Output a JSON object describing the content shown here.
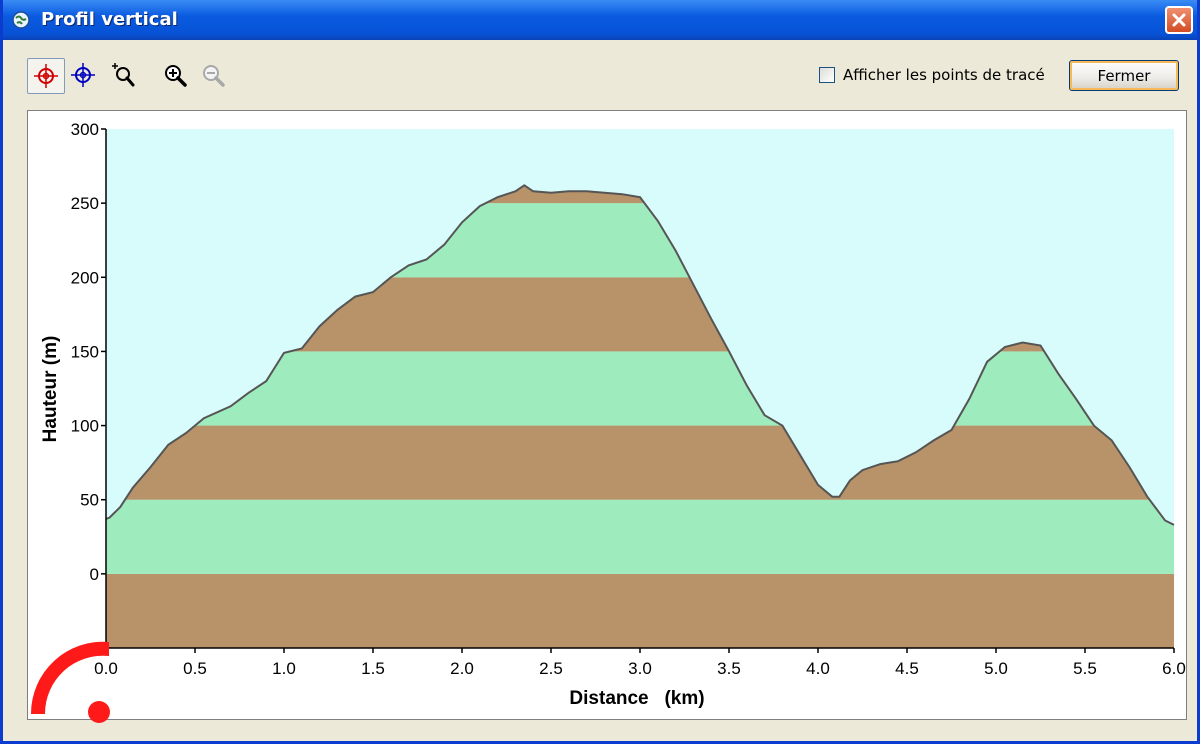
{
  "window": {
    "title": "Profil vertical",
    "title_icon": "globe-icon",
    "close_icon": "close-icon"
  },
  "toolbar": {
    "tools": [
      {
        "name": "red-crosshair-icon",
        "active": true
      },
      {
        "name": "blue-crosshair-icon",
        "active": false
      },
      {
        "name": "zoom-area-icon",
        "active": false
      },
      {
        "name": "zoom-in-icon",
        "active": false
      },
      {
        "name": "zoom-out-icon",
        "active": false,
        "disabled": true
      }
    ],
    "checkbox_label": "Afficher les points de tracé",
    "checkbox_checked": false,
    "close_label": "Fermer"
  },
  "chart_data": {
    "type": "area",
    "xlabel": "Distance   (km)",
    "ylabel": "Hauteur (m)",
    "xlim": [
      0,
      6
    ],
    "ylim": [
      -50,
      300
    ],
    "xticks": [
      "0.0",
      "0.5",
      "1.0",
      "1.5",
      "2.0",
      "2.5",
      "3.0",
      "3.5",
      "4.0",
      "4.5",
      "5.0",
      "5.5",
      "6.0"
    ],
    "yticks": [
      "0",
      "50",
      "100",
      "150",
      "200",
      "250",
      "300"
    ],
    "band_interval": 50,
    "band_colors": [
      "#b8936a",
      "#9eecbe"
    ],
    "sky_color": "#d8fcfc",
    "series": [
      {
        "x": [
          0.0,
          0.02,
          0.08,
          0.15,
          0.25,
          0.35,
          0.45,
          0.55,
          0.7,
          0.8,
          0.9,
          1.0,
          1.1,
          1.2,
          1.3,
          1.4,
          1.5,
          1.6,
          1.7,
          1.8,
          1.9,
          2.0,
          2.1,
          2.2,
          2.3,
          2.35,
          2.4,
          2.5,
          2.6,
          2.7,
          2.8,
          2.9,
          3.0,
          3.1,
          3.2,
          3.3,
          3.4,
          3.5,
          3.6,
          3.7,
          3.8,
          3.9,
          4.0,
          4.08,
          4.12,
          4.18,
          4.25,
          4.35,
          4.45,
          4.55,
          4.65,
          4.75,
          4.85,
          4.95,
          5.05,
          5.15,
          5.25,
          5.35,
          5.45,
          5.55,
          5.65,
          5.75,
          5.85,
          5.95,
          6.0
        ],
        "values": [
          37,
          38,
          45,
          58,
          72,
          87,
          95,
          105,
          113,
          122,
          130,
          149,
          152,
          167,
          178,
          187,
          190,
          200,
          208,
          212,
          222,
          237,
          248,
          254,
          258,
          262,
          258,
          257,
          258,
          258,
          257,
          256,
          254,
          238,
          218,
          195,
          172,
          150,
          127,
          107,
          100,
          80,
          60,
          52,
          52,
          63,
          70,
          74,
          76,
          82,
          90,
          97,
          118,
          143,
          153,
          156,
          154,
          135,
          118,
          100,
          90,
          72,
          52,
          36,
          33
        ]
      }
    ]
  }
}
